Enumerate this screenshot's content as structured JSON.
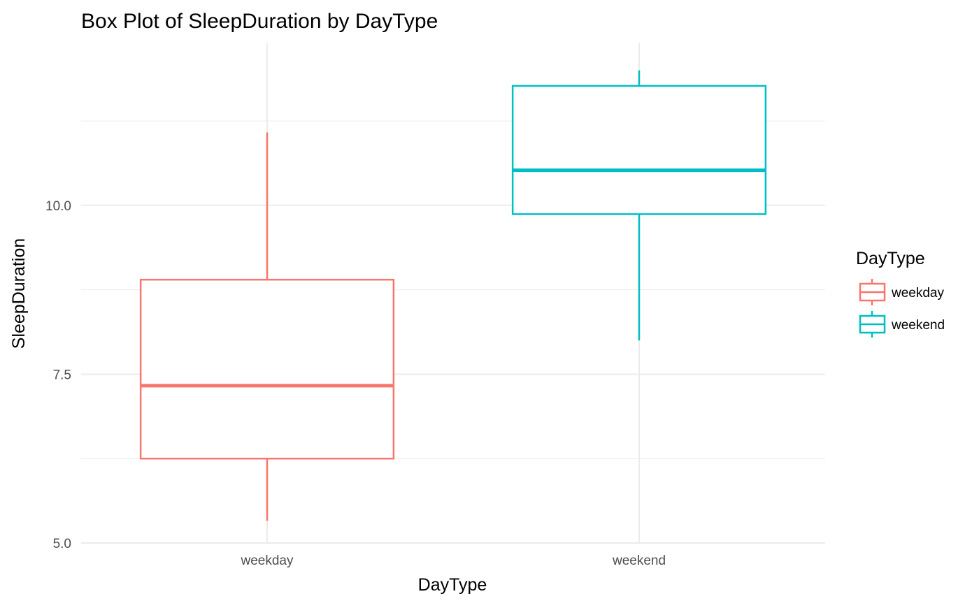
{
  "chart_data": {
    "type": "box",
    "title": "Box Plot of SleepDuration by DayType",
    "xlabel": "DayType",
    "ylabel": "SleepDuration",
    "categories": [
      "weekday",
      "weekend"
    ],
    "ylim": [
      5.0,
      12.4
    ],
    "yticks": [
      5.0,
      7.5,
      10.0
    ],
    "ytick_labels": [
      "5.0",
      "7.5",
      "10.0"
    ],
    "grid": true,
    "legend": {
      "title": "DayType",
      "position": "right",
      "entries": [
        "weekday",
        "weekend"
      ]
    },
    "series": [
      {
        "name": "weekday",
        "color": "#F8766D",
        "min": 5.33,
        "q1": 6.25,
        "median": 7.33,
        "q3": 8.9,
        "max": 11.08
      },
      {
        "name": "weekend",
        "color": "#00BFC4",
        "min": 8.0,
        "q1": 9.87,
        "median": 10.52,
        "q3": 11.77,
        "max": 12.0
      }
    ]
  }
}
